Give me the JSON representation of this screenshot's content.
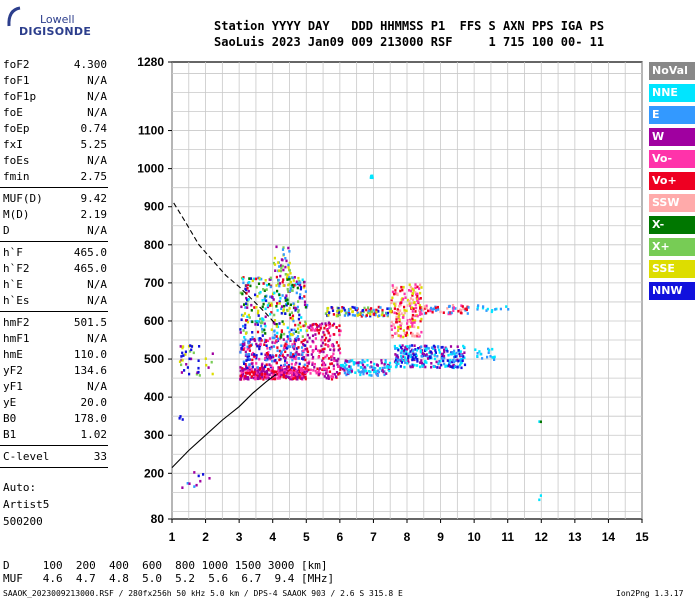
{
  "logo": {
    "top": "Lowell",
    "bottom": "DIGISONDE"
  },
  "header": {
    "line1": "Station YYYY DAY   DDD HHMMSS P1  FFS S AXN PPS IGA PS",
    "line2": "SaoLuis 2023 Jan09 009 213000 RSF     1 715 100 00- 11"
  },
  "params_a": [
    {
      "k": "foF2",
      "v": "4.300"
    },
    {
      "k": "foF1",
      "v": "N/A"
    },
    {
      "k": "foF1p",
      "v": "N/A"
    },
    {
      "k": "foE",
      "v": "N/A"
    },
    {
      "k": "foEp",
      "v": "0.74"
    },
    {
      "k": "fxI",
      "v": "5.25"
    },
    {
      "k": "foEs",
      "v": "N/A"
    },
    {
      "k": "fmin",
      "v": "2.75"
    }
  ],
  "params_b": [
    {
      "k": "MUF(D)",
      "v": "9.42"
    },
    {
      "k": "M(D)",
      "v": "2.19"
    },
    {
      "k": "D",
      "v": "N/A"
    }
  ],
  "params_c": [
    {
      "k": "h`F",
      "v": "465.0"
    },
    {
      "k": "h`F2",
      "v": "465.0"
    },
    {
      "k": "h`E",
      "v": "N/A"
    },
    {
      "k": "h`Es",
      "v": "N/A"
    }
  ],
  "params_d": [
    {
      "k": "hmF2",
      "v": "501.5"
    },
    {
      "k": "hmF1",
      "v": "N/A"
    },
    {
      "k": "hmE",
      "v": "110.0"
    },
    {
      "k": "yF2",
      "v": "134.6"
    },
    {
      "k": "yF1",
      "v": "N/A"
    },
    {
      "k": "yE",
      "v": "20.0"
    },
    {
      "k": "B0",
      "v": "178.0"
    },
    {
      "k": "B1",
      "v": "1.02"
    }
  ],
  "params_e": [
    {
      "k": "C-level",
      "v": "33"
    }
  ],
  "side_info": {
    "auto": "Auto:",
    "artist": "Artist5",
    "code": "500200"
  },
  "legend": [
    {
      "label": "NoVal",
      "bg": "#888888",
      "fg": "#ffffff"
    },
    {
      "label": "NNE",
      "bg": "#00e5ff",
      "fg": "#ffffff"
    },
    {
      "label": "E",
      "bg": "#3399ff",
      "fg": "#ffffff"
    },
    {
      "label": "W",
      "bg": "#a000a0",
      "fg": "#ffffff"
    },
    {
      "label": "Vo-",
      "bg": "#ff33aa",
      "fg": "#ffffff"
    },
    {
      "label": "Vo+",
      "bg": "#ee0022",
      "fg": "#ffffff"
    },
    {
      "label": "SSW",
      "bg": "#ffaaaa",
      "fg": "#ffffff"
    },
    {
      "label": "X-",
      "bg": "#007700",
      "fg": "#ffffff"
    },
    {
      "label": "X+",
      "bg": "#77cc55",
      "fg": "#ffffff"
    },
    {
      "label": "SSE",
      "bg": "#dddd00",
      "fg": "#ffffff"
    },
    {
      "label": "NNW",
      "bg": "#1111dd",
      "fg": "#ffffff"
    }
  ],
  "footer": {
    "row1": "D     100  200  400  600  800 1000 1500 3000 [km]",
    "row2": "MUF   4.6  4.7  4.8  5.0  5.2  5.6  6.7  9.4 [MHz]",
    "file": "SAAOK_2023009213000.RSF / 280fx256h 50 kHz 5.0 km / DPS-4 SAAOK 903 / 2.6 S 315.8 E",
    "version": "Ion2Png 1.3.17"
  },
  "chart_data": {
    "type": "scatter",
    "xlim": [
      1,
      15
    ],
    "ylim": [
      80,
      1280
    ],
    "x_ticks": [
      1,
      2,
      3,
      4,
      5,
      6,
      7,
      8,
      9,
      10,
      11,
      12,
      13,
      14,
      15
    ],
    "y_ticks": [
      80,
      200,
      300,
      400,
      500,
      600,
      700,
      800,
      900,
      1000,
      1100,
      1280
    ],
    "grid": true,
    "trace_dashed": [
      [
        1.05,
        910
      ],
      [
        1.4,
        860
      ],
      [
        1.8,
        800
      ],
      [
        2.2,
        760
      ],
      [
        2.6,
        720
      ],
      [
        3.0,
        690
      ],
      [
        3.4,
        655
      ],
      [
        3.8,
        620
      ],
      [
        4.1,
        590
      ]
    ],
    "trace_solid": [
      [
        1.0,
        215
      ],
      [
        1.5,
        260
      ],
      [
        2.0,
        300
      ],
      [
        2.5,
        340
      ],
      [
        3.0,
        375
      ],
      [
        3.4,
        410
      ],
      [
        3.8,
        440
      ],
      [
        4.1,
        460
      ]
    ],
    "clusters": [
      {
        "x": [
          3.0,
          5.0
        ],
        "y": [
          450,
          480
        ],
        "n": 320,
        "colors": [
          "#a000a0",
          "#ee0022",
          "#ff33aa"
        ]
      },
      {
        "x": [
          3.0,
          5.0
        ],
        "y": [
          480,
          560
        ],
        "n": 260,
        "colors": [
          "#a000a0",
          "#3399ff",
          "#ee0022",
          "#ff33aa",
          "#1111dd"
        ]
      },
      {
        "x": [
          3.0,
          5.0
        ],
        "y": [
          560,
          720
        ],
        "n": 300,
        "colors": [
          "#3399ff",
          "#00e5ff",
          "#a000a0",
          "#1111dd",
          "#dddd00",
          "#ee0022",
          "#77cc55",
          "#007700"
        ]
      },
      {
        "x": [
          5.0,
          6.0
        ],
        "y": [
          450,
          600
        ],
        "n": 180,
        "colors": [
          "#a000a0",
          "#ee0022",
          "#ff33aa"
        ]
      },
      {
        "x": [
          6.0,
          7.5
        ],
        "y": [
          460,
          500
        ],
        "n": 120,
        "colors": [
          "#3399ff",
          "#a000a0",
          "#00e5ff"
        ]
      },
      {
        "x": [
          5.5,
          7.5
        ],
        "y": [
          615,
          640
        ],
        "n": 110,
        "colors": [
          "#1111dd",
          "#ee0022",
          "#dddd00",
          "#77cc55",
          "#3399ff"
        ]
      },
      {
        "x": [
          7.5,
          8.4
        ],
        "y": [
          560,
          700
        ],
        "n": 180,
        "colors": [
          "#ff33aa",
          "#ffaaaa",
          "#ee0022",
          "#dddd00"
        ]
      },
      {
        "x": [
          7.6,
          9.7
        ],
        "y": [
          480,
          540
        ],
        "n": 260,
        "colors": [
          "#3399ff",
          "#a000a0",
          "#00e5ff",
          "#1111dd"
        ]
      },
      {
        "x": [
          8.3,
          9.8
        ],
        "y": [
          620,
          645
        ],
        "n": 60,
        "colors": [
          "#ee0022",
          "#ffaaaa",
          "#ff33aa",
          "#3399ff"
        ]
      },
      {
        "x": [
          10.0,
          10.6
        ],
        "y": [
          500,
          530
        ],
        "n": 18,
        "colors": [
          "#3399ff",
          "#00e5ff"
        ]
      },
      {
        "x": [
          10.0,
          11.0
        ],
        "y": [
          625,
          645
        ],
        "n": 14,
        "colors": [
          "#00e5ff",
          "#3399ff"
        ]
      },
      {
        "x": [
          1.2,
          2.2
        ],
        "y": [
          460,
          540
        ],
        "n": 40,
        "colors": [
          "#1111dd",
          "#dddd00",
          "#a000a0",
          "#77cc55"
        ]
      },
      {
        "x": [
          1.2,
          2.1
        ],
        "y": [
          160,
          210
        ],
        "n": 10,
        "colors": [
          "#1111dd",
          "#3399ff",
          "#a000a0"
        ]
      },
      {
        "x": [
          1.1,
          1.3
        ],
        "y": [
          330,
          360
        ],
        "n": 3,
        "colors": [
          "#1111dd"
        ]
      },
      {
        "x": [
          4.0,
          4.5
        ],
        "y": [
          720,
          800
        ],
        "n": 35,
        "colors": [
          "#dddd00",
          "#77cc55",
          "#3399ff",
          "#a000a0"
        ]
      },
      {
        "x": [
          6.8,
          7.1
        ],
        "y": [
          975,
          985
        ],
        "n": 6,
        "colors": [
          "#00e5ff"
        ]
      },
      {
        "x": [
          11.9,
          12.0
        ],
        "y": [
          80,
          360
        ],
        "n": 4,
        "colors": [
          "#00e5ff",
          "#007700"
        ]
      }
    ]
  }
}
